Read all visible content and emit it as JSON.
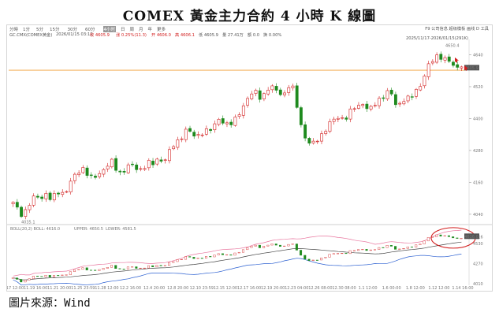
{
  "title": "COMEX 黃金主力合約 4 小時 K 線圖",
  "source": "圖片來源：Wind",
  "toolbar": {
    "timeframes": [
      "分時",
      "1分",
      "5分",
      "15分",
      "30分",
      "60分",
      "4小时",
      "日",
      "周",
      "月",
      "年",
      "更多"
    ],
    "active_index": 6,
    "right_items": "F9 公司信息 超级模板 画线 D 工具"
  },
  "infobar": {
    "symbol": "GC.CMX(COMEX黄金)",
    "datetime": "2026/01/15 03:12",
    "price": "收 4605.9",
    "change": "涨 0.25%(11.3)",
    "open": "开 4606.0",
    "high": "高 4606.1",
    "low": "低 4605.9",
    "volume": "量 27.41万",
    "amount": "额 0.0",
    "turnover": "换 0.00%"
  },
  "daterange": "2025/11/17-2026/01/15(291K)",
  "boll_label": {
    "params": "BOLL(20,2) BOLL: 4616.0",
    "upper": "UPPER: 4650.5",
    "lower": "LOWER: 4581.5"
  },
  "colors": {
    "up": "#d21f1f",
    "down": "#1e8a1e",
    "upper": "#e8749d",
    "lower": "#2a5fd1",
    "mid": "#444444",
    "ref_line": "#f0a03a",
    "circle": "#d21f1f"
  },
  "chart_data": {
    "type": "candlestick",
    "title": "",
    "main_panel": {
      "ylim": [
        4010,
        4680
      ],
      "yticks": [
        4040,
        4160,
        4280,
        4400,
        4520,
        4640
      ],
      "min_annotation": "4035.1",
      "max_annotation": "4650.4",
      "current_price_label": "4605.9",
      "ref_line_value": 4582
    },
    "boll_panel": {
      "ylim": [
        3990,
        4680
      ],
      "yticks": [
        4010,
        4270,
        4530,
        4616.0
      ]
    },
    "xticks": [
      "11.17 12:00",
      "11.19 16:00",
      "11.21 20:00",
      "11.25 23:59",
      "11.28 12:00",
      "12.2 16:00",
      "12.4 20:00",
      "12.8 20:00",
      "12.10 23:59",
      "12.15 12:00",
      "12.17 16:00",
      "12.19 20:00",
      "12.23 04:00",
      "12.26 08:00",
      "12.30 08:00",
      "1.1 12:00",
      "1.6 00:00",
      "1.8 12:00",
      "1.12 12:00",
      "1.14 16:00"
    ],
    "close_path": [
      4080,
      4060,
      4035,
      4065,
      4090,
      4110,
      4100,
      4120,
      4095,
      4110,
      4130,
      4115,
      4150,
      4180,
      4200,
      4215,
      4190,
      4170,
      4185,
      4205,
      4220,
      4240,
      4210,
      4195,
      4210,
      4230,
      4215,
      4205,
      4220,
      4235,
      4225,
      4250,
      4240,
      4260,
      4290,
      4310,
      4330,
      4360,
      4345,
      4330,
      4340,
      4360,
      4350,
      4370,
      4400,
      4390,
      4375,
      4380,
      4410,
      4440,
      4470,
      4490,
      4500,
      4480,
      4495,
      4520,
      4510,
      4500,
      4490,
      4520,
      4510,
      4430,
      4350,
      4310,
      4300,
      4320,
      4340,
      4360,
      4385,
      4400,
      4410,
      4395,
      4420,
      4440,
      4450,
      4460,
      4430,
      4440,
      4470,
      4480,
      4500,
      4490,
      4450,
      4460,
      4480,
      4470,
      4500,
      4520,
      4560,
      4600,
      4620,
      4640,
      4630,
      4620,
      4600,
      4590,
      4605
    ]
  }
}
